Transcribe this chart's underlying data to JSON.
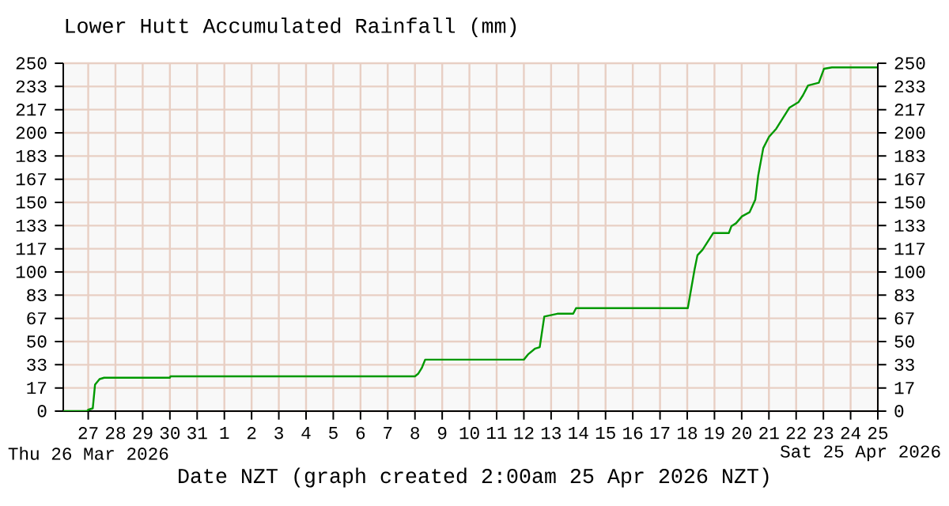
{
  "chart_data": {
    "type": "line",
    "title": "Lower Hutt Accumulated Rainfall (mm)",
    "xlabel": "Date NZT (graph created 2:00am 25 Apr 2026 NZT)",
    "annotations": [
      "Thu 26 Mar 2026",
      "Sat 25 Apr 2026"
    ],
    "x": [
      "2026-03-26T02:00",
      "2026-03-26T23:00",
      "2026-03-27T00:00",
      "2026-03-27T04:00",
      "2026-03-27T06:00",
      "2026-03-27T10:00",
      "2026-03-27T14:00",
      "2026-03-30T00:00",
      "2026-03-30T00:30",
      "2026-04-08T00:00",
      "2026-04-08T03:00",
      "2026-04-08T06:00",
      "2026-04-08T09:00",
      "2026-04-12T00:00",
      "2026-04-12T04:00",
      "2026-04-12T10:00",
      "2026-04-12T14:00",
      "2026-04-12T18:00",
      "2026-04-13T05:30",
      "2026-04-13T19:30",
      "2026-04-13T22:00",
      "2026-04-18T00:30",
      "2026-04-18T06:30",
      "2026-04-18T09:00",
      "2026-04-18T13:30",
      "2026-04-18T23:00",
      "2026-04-19T12:40",
      "2026-04-19T15:00",
      "2026-04-19T19:00",
      "2026-04-20T00:15",
      "2026-04-20T07:00",
      "2026-04-20T12:00",
      "2026-04-20T14:30",
      "2026-04-20T19:00",
      "2026-04-21T00:00",
      "2026-04-21T06:30",
      "2026-04-21T18:00",
      "2026-04-22T02:00",
      "2026-04-22T06:00",
      "2026-04-22T10:30",
      "2026-04-22T20:00",
      "2026-04-23T00:30",
      "2026-04-23T07:30",
      "2026-04-25T00:00"
    ],
    "series": [
      {
        "color": "#009900",
        "values": [
          0,
          0,
          1,
          2,
          19,
          23,
          24,
          24,
          25,
          25,
          27,
          31,
          37,
          37,
          41,
          45,
          46,
          68,
          70,
          70,
          74,
          74,
          102,
          112,
          116,
          128,
          128,
          133,
          135,
          140,
          143,
          152,
          169,
          189,
          197,
          203,
          218,
          222,
          227,
          234,
          236,
          246,
          247,
          247
        ]
      }
    ],
    "xlim": [
      "2026-03-26T02:00",
      "2026-04-25T00:00"
    ],
    "xticks": [
      {
        "value": "2026-03-27",
        "label": "27"
      },
      {
        "value": "2026-03-28",
        "label": "28"
      },
      {
        "value": "2026-03-29",
        "label": "29"
      },
      {
        "value": "2026-03-30",
        "label": "30"
      },
      {
        "value": "2026-03-31",
        "label": "31"
      },
      {
        "value": "2026-04-01",
        "label": "1"
      },
      {
        "value": "2026-04-02",
        "label": "2"
      },
      {
        "value": "2026-04-03",
        "label": "3"
      },
      {
        "value": "2026-04-04",
        "label": "4"
      },
      {
        "value": "2026-04-05",
        "label": "5"
      },
      {
        "value": "2026-04-06",
        "label": "6"
      },
      {
        "value": "2026-04-07",
        "label": "7"
      },
      {
        "value": "2026-04-08",
        "label": "8"
      },
      {
        "value": "2026-04-09",
        "label": "9"
      },
      {
        "value": "2026-04-10",
        "label": "10"
      },
      {
        "value": "2026-04-11",
        "label": "11"
      },
      {
        "value": "2026-04-12",
        "label": "12"
      },
      {
        "value": "2026-04-13",
        "label": "13"
      },
      {
        "value": "2026-04-14",
        "label": "14"
      },
      {
        "value": "2026-04-15",
        "label": "15"
      },
      {
        "value": "2026-04-16",
        "label": "16"
      },
      {
        "value": "2026-04-17",
        "label": "17"
      },
      {
        "value": "2026-04-18",
        "label": "18"
      },
      {
        "value": "2026-04-19",
        "label": "19"
      },
      {
        "value": "2026-04-20",
        "label": "20"
      },
      {
        "value": "2026-04-21",
        "label": "21"
      },
      {
        "value": "2026-04-22",
        "label": "22"
      },
      {
        "value": "2026-04-23",
        "label": "23"
      },
      {
        "value": "2026-04-24",
        "label": "24"
      },
      {
        "value": "2026-04-25",
        "label": "25"
      }
    ],
    "ylim": [
      0,
      250
    ],
    "yticks": [
      0,
      {
        "value": 16.67,
        "label": "17"
      },
      {
        "value": 33.33,
        "label": "33"
      },
      50,
      {
        "value": 66.67,
        "label": "67"
      },
      {
        "value": 83.33,
        "label": "83"
      },
      100,
      {
        "value": 116.67,
        "label": "117"
      },
      {
        "value": 133.33,
        "label": "133"
      },
      150,
      {
        "value": 166.67,
        "label": "167"
      },
      {
        "value": 183.33,
        "label": "183"
      },
      200,
      {
        "value": 216.67,
        "label": "217"
      },
      {
        "value": 233.33,
        "label": "233"
      },
      250
    ],
    "y2lim": [
      0,
      250
    ],
    "y2ticks": [
      0,
      {
        "value": 16.67,
        "label": "17"
      },
      {
        "value": 33.33,
        "label": "33"
      },
      50,
      {
        "value": 66.67,
        "label": "67"
      },
      {
        "value": 83.33,
        "label": "83"
      },
      100,
      {
        "value": 116.67,
        "label": "117"
      },
      {
        "value": 133.33,
        "label": "133"
      },
      150,
      {
        "value": 166.67,
        "label": "167"
      },
      {
        "value": 183.33,
        "label": "183"
      },
      200,
      {
        "value": 216.67,
        "label": "217"
      },
      {
        "value": 233.33,
        "label": "233"
      },
      250
    ],
    "grid": true,
    "marker": "none",
    "line_style": "solid"
  }
}
